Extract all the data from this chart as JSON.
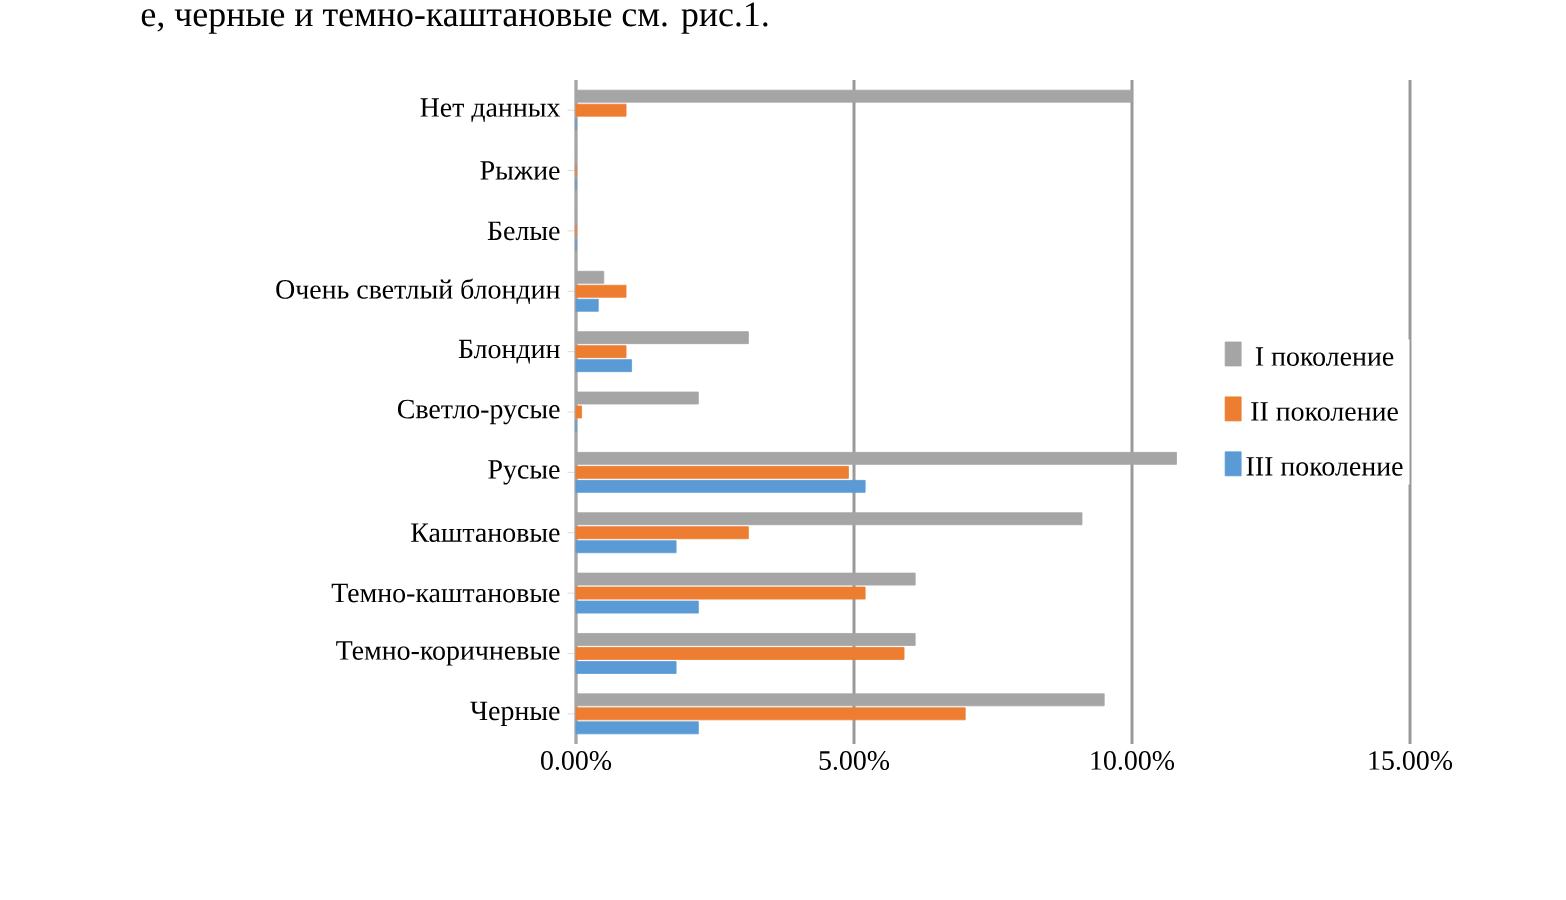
{
  "chart_data": {
    "type": "bar",
    "orientation": "horizontal",
    "annotations": [
      "е, черные и темно-каштановые см. рис.1."
    ],
    "categories": [
      "Нет данных",
      "Рыжие",
      "Белые",
      "Очень светлый блондин",
      "Блондин",
      "Светло-русые",
      "Русые",
      "Каштановые",
      "Темно-каштановые",
      "Темно-коричневые",
      "Черные"
    ],
    "series": [
      {
        "name": "I поколение",
        "color": "#a5a5a5",
        "values": [
          0.1,
          0,
          0,
          0.005,
          0.031,
          0.022,
          0.108,
          0.091,
          0.061,
          0.061,
          0.095
        ]
      },
      {
        "name": "II поколение",
        "color": "#ed7d31",
        "values": [
          0.009,
          0,
          0,
          0.009,
          0.009,
          0.001,
          0.049,
          0.031,
          0.052,
          0.059,
          0.07
        ]
      },
      {
        "name": "III поколение",
        "color": "#5b9bd5",
        "values": [
          0,
          0,
          0,
          0.004,
          0.01,
          0,
          0.052,
          0.018,
          0.022,
          0.018,
          0.022
        ]
      }
    ],
    "xlim": [
      0,
      0.15
    ],
    "xticks": [
      {
        "value": 0,
        "label": "0.00%"
      },
      {
        "value": 0.05,
        "label": "5.00%"
      },
      {
        "value": 0.1,
        "label": "10.00%"
      },
      {
        "value": 0.15,
        "label": "15.00%"
      }
    ],
    "grid": "x",
    "legend": "right"
  }
}
